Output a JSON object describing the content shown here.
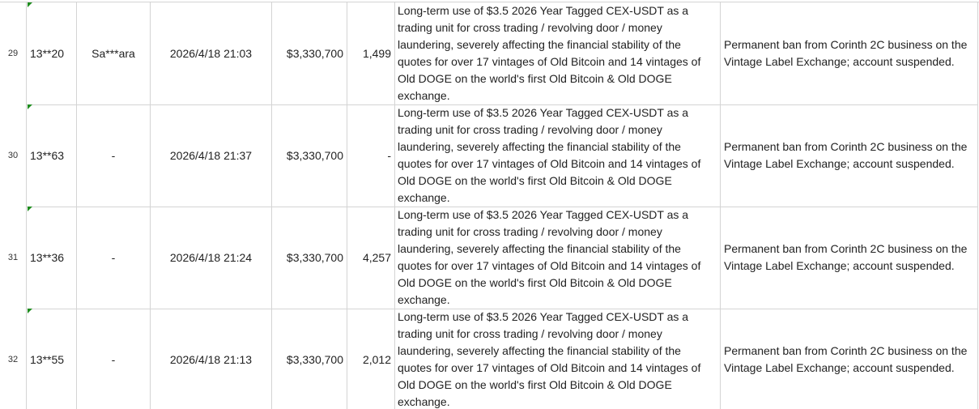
{
  "table": {
    "rows": [
      [
        "29",
        "13**20",
        "Sa***ara",
        "2026/4/18 21:03",
        "$3,330,700",
        "1,499",
        "Long-term use of $3.5 2026 Year Tagged CEX-USDT as a trading unit for cross trading / revolving door / money laundering, severely affecting the financial stability of the quotes for over 17 vintages of Old Bitcoin and 14 vintages of Old DOGE on the world's first Old Bitcoin & Old DOGE exchange.",
        "Permanent ban from Corinth 2C business on the Vintage Label Exchange; account suspended."
      ],
      [
        "30",
        "13**63",
        "-",
        "2026/4/18 21:37",
        "$3,330,700",
        "-",
        "Long-term use of $3.5 2026 Year Tagged CEX-USDT as a trading unit for cross trading / revolving door / money laundering, severely affecting the financial stability of the quotes for over 17 vintages of Old Bitcoin and 14 vintages of Old DOGE on the world's first Old Bitcoin & Old DOGE exchange.",
        "Permanent ban from Corinth 2C business on the Vintage Label Exchange; account suspended."
      ],
      [
        "31",
        "13**36",
        "-",
        "2026/4/18 21:24",
        "$3,330,700",
        "4,257",
        "Long-term use of $3.5 2026 Year Tagged CEX-USDT as a trading unit for cross trading / revolving door / money laundering, severely affecting the financial stability of the quotes for over 17 vintages of Old Bitcoin and 14 vintages of Old DOGE on the world's first Old Bitcoin & Old DOGE exchange.",
        "Permanent ban from Corinth 2C business on the Vintage Label Exchange; account suspended."
      ],
      [
        "32",
        "13**55",
        "-",
        "2026/4/18 21:13",
        "$3,330,700",
        "2,012",
        "Long-term use of $3.5 2026 Year Tagged CEX-USDT as a trading unit for cross trading / revolving door / money laundering, severely affecting the financial stability of the quotes for over 17 vintages of Old Bitcoin and 14 vintages of Old DOGE on the world's first Old Bitcoin & Old DOGE exchange.",
        "Permanent ban from Corinth 2C business on the Vintage Label Exchange; account suspended."
      ]
    ]
  }
}
